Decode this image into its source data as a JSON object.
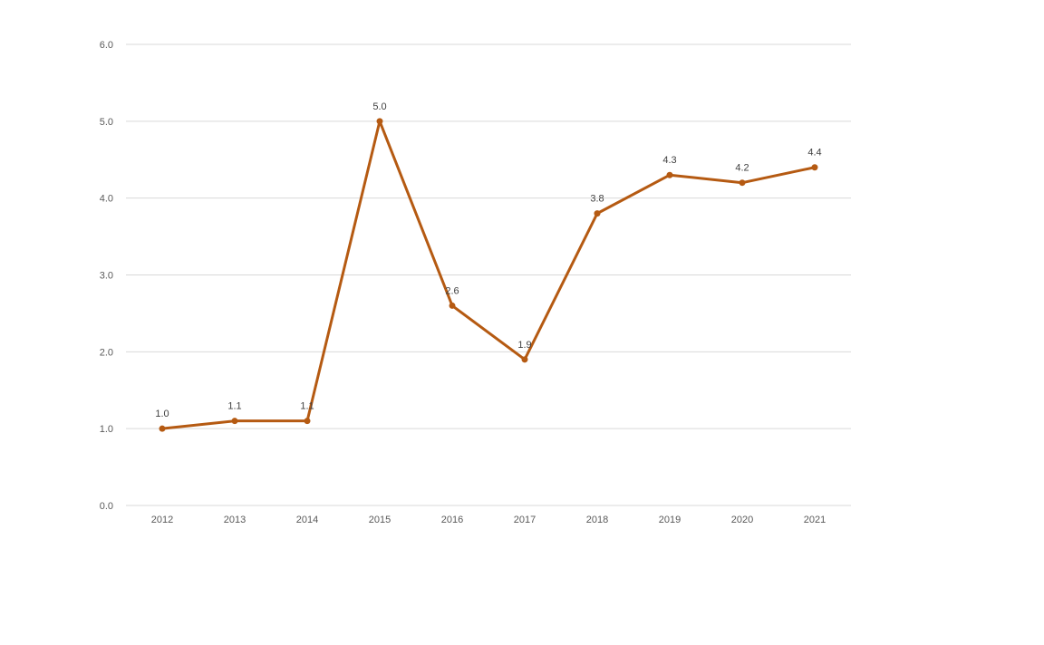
{
  "chart_data": {
    "type": "line",
    "title": "",
    "xlabel": "",
    "ylabel": "",
    "categories": [
      "2012",
      "2013",
      "2014",
      "2015",
      "2016",
      "2017",
      "2018",
      "2019",
      "2020",
      "2021"
    ],
    "series": [
      {
        "values": [
          1.0,
          1.1,
          1.1,
          5.0,
          2.6,
          1.9,
          3.8,
          4.3,
          4.2,
          4.4
        ],
        "labels": [
          "1.0",
          "1.1",
          "1.1",
          "5.0",
          "2.6",
          "1.9",
          "3.8",
          "4.3",
          "4.2",
          "4.4"
        ],
        "color": "#b55a12"
      }
    ],
    "ylim": [
      0,
      6
    ],
    "yticks": [
      0,
      1,
      2,
      3,
      4,
      5,
      6
    ],
    "ytick_labels": [
      "0.0",
      "1.0",
      "2.0",
      "3.0",
      "4.0",
      "5.0",
      "6.0"
    ],
    "grid": true,
    "legend": "none",
    "grid_color": "#d9d9d9"
  }
}
